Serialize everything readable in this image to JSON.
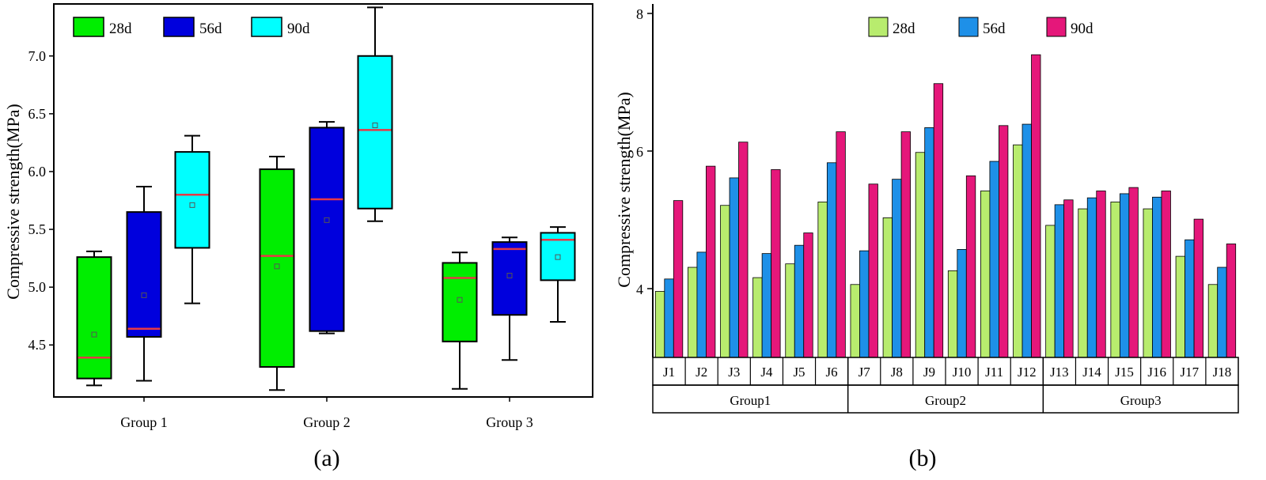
{
  "figure": {
    "panel_a_label": "(a)",
    "panel_b_label": "(b)"
  },
  "chart_data": [
    {
      "type": "box",
      "panel": "(a)",
      "ylabel": "Compressive strength(MPa)",
      "ylim": [
        4.05,
        7.45
      ],
      "yticks": [
        "4.5",
        "5.0",
        "5.5",
        "6.0",
        "6.5",
        "7.0"
      ],
      "categories": [
        "Group 1",
        "Group 2",
        "Group 3"
      ],
      "legend": [
        {
          "name": "28d",
          "color": "#00ee00"
        },
        {
          "name": "56d",
          "color": "#0000dd"
        },
        {
          "name": "90d",
          "color": "#00ffff"
        }
      ],
      "median_color": "#e63946",
      "boxes": [
        {
          "group": "Group 1",
          "series": "28d",
          "min": 4.15,
          "q1": 4.21,
          "median": 4.39,
          "q3": 5.26,
          "max": 5.31,
          "mean": 4.59
        },
        {
          "group": "Group 1",
          "series": "56d",
          "min": 4.19,
          "q1": 4.57,
          "median": 4.64,
          "q3": 5.65,
          "max": 5.87,
          "mean": 4.93
        },
        {
          "group": "Group 1",
          "series": "90d",
          "min": 4.86,
          "q1": 5.34,
          "median": 5.8,
          "q3": 6.17,
          "max": 6.31,
          "mean": 5.71
        },
        {
          "group": "Group 2",
          "series": "28d",
          "min": 4.11,
          "q1": 4.31,
          "median": 5.27,
          "q3": 6.02,
          "max": 6.13,
          "mean": 5.18
        },
        {
          "group": "Group 2",
          "series": "56d",
          "min": 4.6,
          "q1": 4.62,
          "median": 5.76,
          "q3": 6.38,
          "max": 6.43,
          "mean": 5.58
        },
        {
          "group": "Group 2",
          "series": "90d",
          "min": 5.57,
          "q1": 5.68,
          "median": 6.36,
          "q3": 7.0,
          "max": 7.42,
          "mean": 6.4
        },
        {
          "group": "Group 3",
          "series": "28d",
          "min": 4.12,
          "q1": 4.53,
          "median": 5.08,
          "q3": 5.21,
          "max": 5.3,
          "mean": 4.89
        },
        {
          "group": "Group 3",
          "series": "56d",
          "min": 4.37,
          "q1": 4.76,
          "median": 5.33,
          "q3": 5.39,
          "max": 5.43,
          "mean": 5.1
        },
        {
          "group": "Group 3",
          "series": "90d",
          "min": 4.7,
          "q1": 5.06,
          "median": 5.41,
          "q3": 5.47,
          "max": 5.52,
          "mean": 5.26
        }
      ]
    },
    {
      "type": "bar",
      "panel": "(b)",
      "ylabel": "Compressive strength(MPa)",
      "ylim": [
        3,
        8
      ],
      "yticks": [
        "4",
        "6",
        "8"
      ],
      "categories": [
        "J1",
        "J2",
        "J3",
        "J4",
        "J5",
        "J6",
        "J7",
        "J8",
        "J9",
        "J10",
        "J11",
        "J12",
        "J13",
        "J14",
        "J15",
        "J16",
        "J17",
        "J18"
      ],
      "groups": [
        {
          "name": "Group1",
          "from": 0,
          "to": 5
        },
        {
          "name": "Group2",
          "from": 6,
          "to": 11
        },
        {
          "name": "Group3",
          "from": 12,
          "to": 17
        }
      ],
      "series": [
        {
          "name": "28d",
          "color": "#b8ec6e",
          "values": [
            3.96,
            4.31,
            5.21,
            4.16,
            4.36,
            5.26,
            4.06,
            5.03,
            5.98,
            4.26,
            5.42,
            6.09,
            4.92,
            5.16,
            5.26,
            5.16,
            4.47,
            4.06
          ]
        },
        {
          "name": "56d",
          "color": "#1e90e8",
          "values": [
            4.14,
            4.53,
            5.61,
            4.51,
            4.63,
            5.83,
            4.55,
            5.59,
            6.34,
            4.57,
            5.85,
            6.39,
            5.22,
            5.32,
            5.38,
            5.33,
            4.71,
            4.31
          ]
        },
        {
          "name": "90d",
          "color": "#e5177a",
          "values": [
            5.28,
            5.78,
            6.13,
            5.73,
            4.81,
            6.28,
            5.52,
            6.28,
            6.98,
            5.64,
            6.37,
            7.4,
            5.29,
            5.42,
            5.47,
            5.42,
            5.01,
            4.65
          ]
        }
      ]
    }
  ]
}
